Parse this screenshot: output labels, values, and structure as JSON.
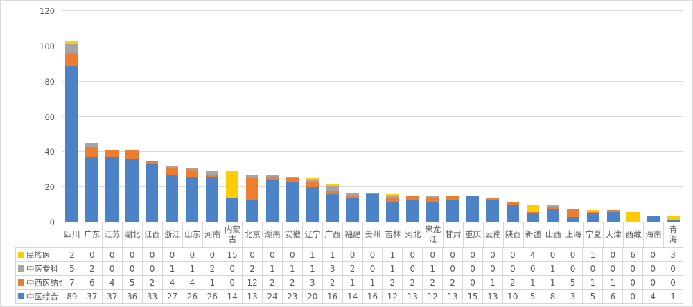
{
  "chart_data": {
    "type": "bar",
    "stacked": true,
    "title": "",
    "xlabel": "",
    "ylabel": "",
    "ylim": [
      0,
      120
    ],
    "y_ticks": [
      0,
      20,
      40,
      60,
      80,
      100,
      120
    ],
    "grid": true,
    "legend_position": "data-table-left",
    "data_table_shown": true,
    "categories": [
      "四川",
      "广东",
      "江苏",
      "湖北",
      "江西",
      "浙江",
      "山东",
      "河南",
      "内蒙古",
      "北京",
      "湖南",
      "安徽",
      "辽宁",
      "广西",
      "福建",
      "贵州",
      "吉林",
      "河北",
      "黑龙江",
      "甘肃",
      "重庆",
      "云南",
      "陕西",
      "新疆",
      "山西",
      "上海",
      "宁夏",
      "天津",
      "西藏",
      "海南",
      "青海"
    ],
    "series": [
      {
        "name": "民族医",
        "color": "#FFCB05",
        "values": [
          2,
          0,
          0,
          0,
          0,
          0,
          0,
          0,
          15,
          0,
          0,
          0,
          1,
          1,
          0,
          0,
          1,
          0,
          0,
          0,
          0,
          0,
          0,
          4,
          0,
          0,
          1,
          0,
          6,
          0,
          3
        ]
      },
      {
        "name": "中医专科",
        "color": "#A5A5A5",
        "values": [
          5,
          2,
          0,
          0,
          0,
          1,
          1,
          2,
          0,
          2,
          1,
          1,
          1,
          3,
          2,
          0,
          1,
          0,
          1,
          0,
          0,
          0,
          0,
          0,
          1,
          0,
          0,
          0,
          0,
          0,
          0
        ]
      },
      {
        "name": "中西医结合",
        "color": "#ED7D31",
        "values": [
          7,
          6,
          4,
          5,
          2,
          4,
          4,
          1,
          0,
          12,
          2,
          2,
          3,
          2,
          1,
          1,
          2,
          2,
          2,
          2,
          0,
          1,
          2,
          1,
          1,
          5,
          1,
          1,
          0,
          0,
          0
        ]
      },
      {
        "name": "中医综合",
        "color": "#4C82C6",
        "values": [
          89,
          37,
          37,
          36,
          33,
          27,
          26,
          26,
          14,
          13,
          24,
          23,
          20,
          16,
          14,
          16,
          12,
          13,
          12,
          13,
          15,
          13,
          10,
          5,
          8,
          3,
          5,
          6,
          0,
          4,
          1
        ]
      }
    ]
  },
  "colors": {
    "gridline": "#d9d9d9",
    "axis_line": "#c6c6c6",
    "table_border": "#d6d6d6",
    "text": "#595959"
  }
}
